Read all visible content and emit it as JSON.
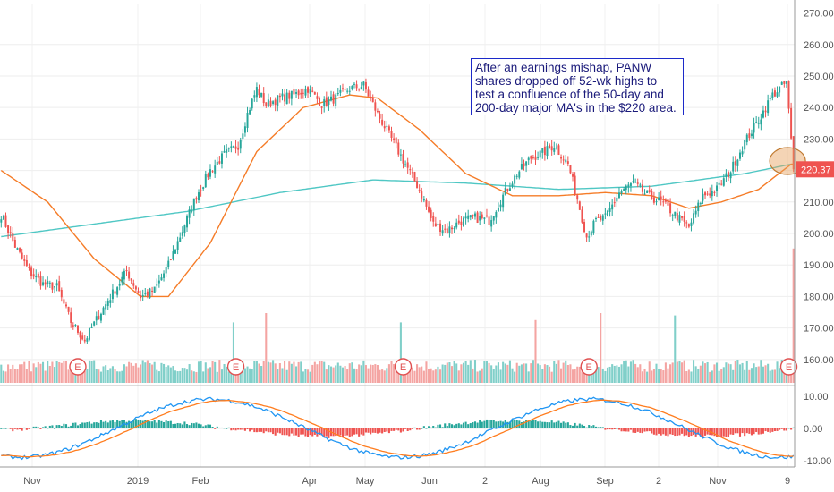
{
  "chart_data": [
    {
      "type": "candlestick",
      "ticker": "PANW",
      "price_axis_ticks": [
        "270.00",
        "260.00",
        "250.00",
        "240.00",
        "230.00",
        "220.00",
        "210.00",
        "200.00",
        "190.00",
        "180.00",
        "170.00",
        "160.00"
      ],
      "ylim": [
        152,
        273
      ],
      "last_price_label": "220.37",
      "last_price": 220.37,
      "x_tick_labels": [
        "Nov",
        "2019",
        "Feb",
        "Apr",
        "May",
        "Jun",
        "2",
        "Aug",
        "Sep",
        "2",
        "Nov",
        "9"
      ],
      "anchor_closes": [
        [
          0,
          206
        ],
        [
          6,
          196
        ],
        [
          12,
          188
        ],
        [
          18,
          184
        ],
        [
          24,
          183
        ],
        [
          30,
          172
        ],
        [
          36,
          166
        ],
        [
          42,
          174
        ],
        [
          48,
          181
        ],
        [
          54,
          188
        ],
        [
          60,
          180
        ],
        [
          66,
          182
        ],
        [
          72,
          190
        ],
        [
          78,
          201
        ],
        [
          84,
          212
        ],
        [
          90,
          220
        ],
        [
          96,
          225
        ],
        [
          102,
          228
        ],
        [
          106,
          238
        ],
        [
          110,
          246
        ],
        [
          114,
          241
        ],
        [
          120,
          243
        ],
        [
          126,
          244
        ],
        [
          132,
          246
        ],
        [
          138,
          241
        ],
        [
          144,
          243
        ],
        [
          150,
          246
        ],
        [
          156,
          247
        ],
        [
          162,
          238
        ],
        [
          168,
          230
        ],
        [
          174,
          222
        ],
        [
          180,
          214
        ],
        [
          186,
          203
        ],
        [
          192,
          201
        ],
        [
          198,
          204
        ],
        [
          204,
          205
        ],
        [
          210,
          204
        ],
        [
          216,
          212
        ],
        [
          222,
          219
        ],
        [
          228,
          224
        ],
        [
          234,
          226
        ],
        [
          238,
          228
        ],
        [
          244,
          222
        ],
        [
          248,
          211
        ],
        [
          252,
          199
        ],
        [
          256,
          204
        ],
        [
          260,
          205
        ],
        [
          266,
          213
        ],
        [
          272,
          216
        ],
        [
          278,
          212
        ],
        [
          284,
          210
        ],
        [
          290,
          206
        ],
        [
          296,
          202
        ],
        [
          302,
          212
        ],
        [
          308,
          214
        ],
        [
          314,
          220
        ],
        [
          320,
          229
        ],
        [
          326,
          236
        ],
        [
          332,
          244
        ],
        [
          338,
          248
        ],
        [
          341,
          220.37
        ]
      ],
      "ma50": [
        [
          0,
          220
        ],
        [
          20,
          210
        ],
        [
          40,
          192
        ],
        [
          60,
          180
        ],
        [
          72,
          180
        ],
        [
          90,
          197
        ],
        [
          110,
          226
        ],
        [
          130,
          240
        ],
        [
          150,
          244
        ],
        [
          162,
          243
        ],
        [
          180,
          233
        ],
        [
          200,
          219
        ],
        [
          220,
          212
        ],
        [
          240,
          212
        ],
        [
          260,
          213
        ],
        [
          280,
          212
        ],
        [
          296,
          208
        ],
        [
          310,
          210
        ],
        [
          326,
          214
        ],
        [
          340,
          222
        ]
      ],
      "ma200": [
        [
          0,
          199
        ],
        [
          40,
          203
        ],
        [
          80,
          207
        ],
        [
          120,
          213
        ],
        [
          160,
          217
        ],
        [
          200,
          216
        ],
        [
          240,
          214
        ],
        [
          280,
          215
        ],
        [
          320,
          219
        ],
        [
          340,
          222
        ]
      ],
      "volume_spikes": [
        [
          100,
          2.6
        ],
        [
          114,
          3.0
        ],
        [
          172,
          2.6
        ],
        [
          230,
          2.7
        ],
        [
          258,
          3.0
        ],
        [
          290,
          2.9
        ],
        [
          341,
          4.7
        ]
      ],
      "earnings_marker_label": "E",
      "earnings_bars": [
        33,
        101,
        173,
        253,
        339
      ],
      "macd_axis_ticks": [
        "10.00",
        "0.00",
        "-10.00"
      ],
      "macd_ylim": [
        -12,
        13
      ],
      "highlight_bar": 340,
      "annotation": "After an earnings mishap, PANW shares dropped off 52-wk highs to test a confluence of the 50-day and 200-day major MA's in the $220 area.",
      "colors": {
        "up": "#26a69a",
        "down": "#ef5350",
        "ma50": "#f57c28",
        "ma200": "#4fc7c4",
        "macd": "#2196f3",
        "signal": "#ff7d1f",
        "annotation": "#1c2ac9"
      }
    }
  ]
}
